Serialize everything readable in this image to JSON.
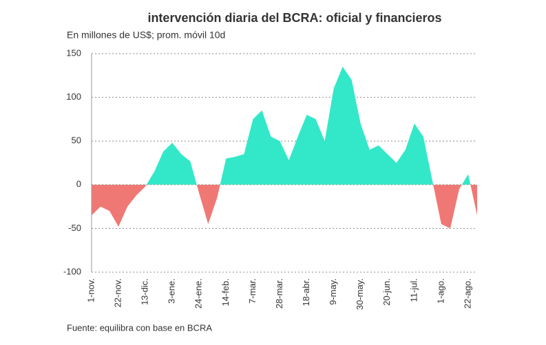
{
  "chart_data": {
    "type": "area",
    "title": "intervención diaria del BCRA: oficial y financieros",
    "subtitle": "En millones de US$; prom. móvil 10d",
    "source": "Fuente: equilibra con base en BCRA",
    "categories": [
      "1-nov.",
      null,
      null,
      "22-nov.",
      null,
      null,
      "13-dic.",
      null,
      null,
      "3-ene.",
      null,
      null,
      "24-ene.",
      null,
      null,
      "14-feb.",
      null,
      null,
      "7-mar.",
      null,
      null,
      "28-mar.",
      null,
      null,
      "18-abr.",
      null,
      null,
      "9-may.",
      null,
      null,
      "30-may.",
      null,
      null,
      "20-jun.",
      null,
      null,
      "11-jul.",
      null,
      null,
      "1-ago.",
      null,
      null,
      "22-ago.",
      null
    ],
    "values": [
      -35,
      -25,
      -30,
      -48,
      -25,
      -12,
      -2,
      15,
      38,
      48,
      35,
      27,
      -10,
      -45,
      -15,
      30,
      32,
      35,
      75,
      85,
      55,
      50,
      28,
      55,
      80,
      75,
      50,
      110,
      135,
      120,
      70,
      40,
      45,
      35,
      25,
      40,
      70,
      55,
      5,
      -45,
      -50,
      -5,
      12,
      -35
    ],
    "positive_color": "#33e8c8",
    "negative_color": "#f07874",
    "ylim": [
      -100,
      150
    ],
    "yticks": [
      -100,
      -50,
      0,
      50,
      100,
      150
    ],
    "grid": true
  }
}
